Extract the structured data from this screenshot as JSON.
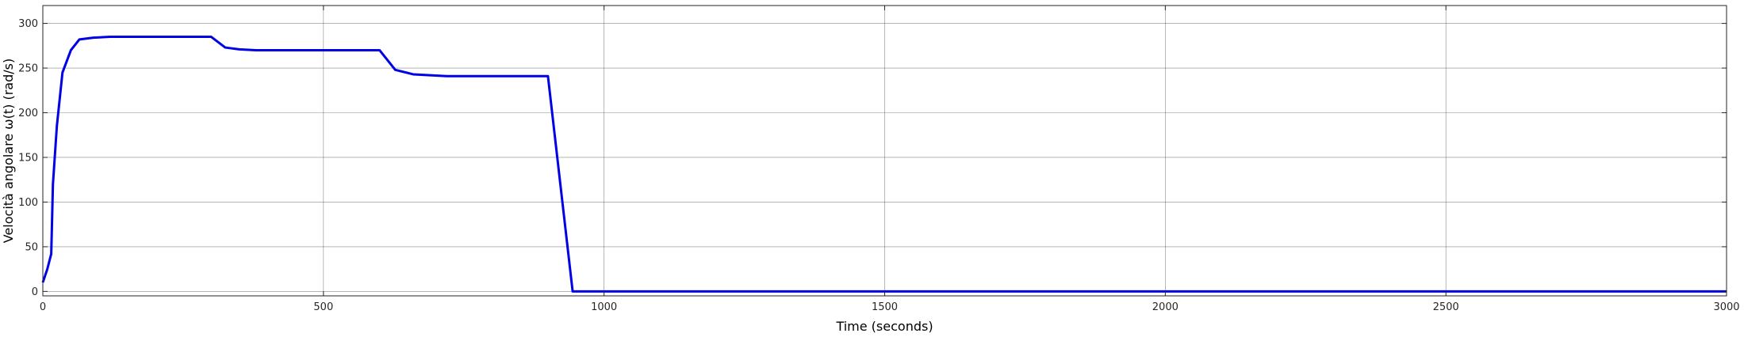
{
  "chart_data": {
    "type": "line",
    "title": "",
    "xlabel": "Time (seconds)",
    "ylabel": "Velocità angolare ω(t) (rad/s)",
    "xlim": [
      0,
      3000
    ],
    "ylim": [
      -5,
      320
    ],
    "xticks": [
      0,
      500,
      1000,
      1500,
      2000,
      2500,
      3000
    ],
    "yticks": [
      0,
      50,
      100,
      150,
      200,
      250,
      300
    ],
    "grid": true,
    "legend": "none",
    "series": [
      {
        "color": "#0000e6",
        "x": [
          0,
          8,
          15,
          18,
          25,
          35,
          50,
          65,
          90,
          120,
          200,
          300,
          325,
          350,
          380,
          450,
          550,
          600,
          628,
          660,
          720,
          800,
          900,
          944,
          1000,
          2000,
          3000
        ],
        "y": [
          10,
          25,
          42,
          120,
          185,
          245,
          270,
          282,
          284,
          285,
          285,
          285,
          273,
          271,
          270,
          270,
          270,
          270,
          248,
          243,
          241,
          241,
          241,
          0,
          0,
          0,
          0
        ]
      }
    ]
  },
  "colors": {
    "line": "#0000e6",
    "grid": "#262626",
    "axes": "#262626",
    "background": "#ffffff"
  }
}
